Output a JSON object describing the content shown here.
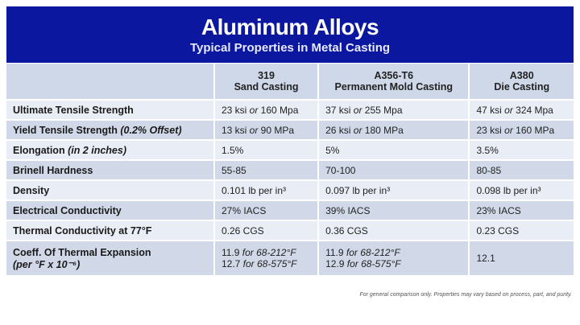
{
  "banner": {
    "title": "Aluminum Alloys",
    "subtitle": "Typical Properties in Metal Casting",
    "color": "#0b179e"
  },
  "columns": [
    {
      "line1": "319",
      "line2": "Sand Casting"
    },
    {
      "line1": "A356-T6",
      "line2": "Permanent Mold Casting"
    },
    {
      "line1": "A380",
      "line2": "Die Casting"
    }
  ],
  "rows": [
    {
      "label": [
        {
          "t": "Ultimate Tensile Strength"
        }
      ],
      "cells": [
        [
          [
            {
              "t": "23 ksi "
            },
            {
              "t": "or",
              "i": true
            },
            {
              "t": " 160 Mpa"
            }
          ]
        ],
        [
          [
            {
              "t": "37 ksi "
            },
            {
              "t": "or",
              "i": true
            },
            {
              "t": " 255 Mpa"
            }
          ]
        ],
        [
          [
            {
              "t": "47 ksi "
            },
            {
              "t": "or",
              "i": true
            },
            {
              "t": " 324 Mpa"
            }
          ]
        ]
      ]
    },
    {
      "label": [
        {
          "t": "Yield Tensile Strength "
        },
        {
          "t": "(0.2% Offset)",
          "i": true
        }
      ],
      "cells": [
        [
          [
            {
              "t": "13 ksi "
            },
            {
              "t": "or",
              "i": true
            },
            {
              "t": " 90 MPa"
            }
          ]
        ],
        [
          [
            {
              "t": "26 ksi "
            },
            {
              "t": "or",
              "i": true
            },
            {
              "t": " 180 MPa"
            }
          ]
        ],
        [
          [
            {
              "t": "23 ksi "
            },
            {
              "t": "or",
              "i": true
            },
            {
              "t": " 160 MPa"
            }
          ]
        ]
      ]
    },
    {
      "label": [
        {
          "t": "Elongation "
        },
        {
          "t": "(in 2 inches)",
          "i": true
        }
      ],
      "cells": [
        [
          [
            {
              "t": "1.5%"
            }
          ]
        ],
        [
          [
            {
              "t": "5%"
            }
          ]
        ],
        [
          [
            {
              "t": "3.5%"
            }
          ]
        ]
      ]
    },
    {
      "label": [
        {
          "t": "Brinell Hardness"
        }
      ],
      "cells": [
        [
          [
            {
              "t": "55-85"
            }
          ]
        ],
        [
          [
            {
              "t": "70-100"
            }
          ]
        ],
        [
          [
            {
              "t": "80-85"
            }
          ]
        ]
      ]
    },
    {
      "label": [
        {
          "t": "Density"
        }
      ],
      "cells": [
        [
          [
            {
              "t": "0.101 lb per in³"
            }
          ]
        ],
        [
          [
            {
              "t": "0.097 lb per in³"
            }
          ]
        ],
        [
          [
            {
              "t": "0.098 lb per in³"
            }
          ]
        ]
      ]
    },
    {
      "label": [
        {
          "t": "Electrical Conductivity"
        }
      ],
      "cells": [
        [
          [
            {
              "t": "27% IACS"
            }
          ]
        ],
        [
          [
            {
              "t": "39% IACS"
            }
          ]
        ],
        [
          [
            {
              "t": "23% IACS"
            }
          ]
        ]
      ]
    },
    {
      "label": [
        {
          "t": "Thermal Conductivity at 77°F"
        }
      ],
      "cells": [
        [
          [
            {
              "t": "0.26 CGS"
            }
          ]
        ],
        [
          [
            {
              "t": "0.36 CGS"
            }
          ]
        ],
        [
          [
            {
              "t": "0.23 CGS"
            }
          ]
        ]
      ]
    },
    {
      "label": [
        {
          "t": "Coeff. Of Thermal Expansion"
        }
      ],
      "label2": [
        {
          "t": "(per °F x 10⁻⁶)",
          "i": true
        }
      ],
      "cells": [
        [
          [
            {
              "t": "11.9 "
            },
            {
              "t": "for 68-212°F",
              "i": true
            }
          ],
          [
            {
              "t": "12.7 "
            },
            {
              "t": "for 68-575°F",
              "i": true
            }
          ]
        ],
        [
          [
            {
              "t": "11.9 "
            },
            {
              "t": "for 68-212°F",
              "i": true
            }
          ],
          [
            {
              "t": "12.9 "
            },
            {
              "t": "for 68-575°F",
              "i": true
            }
          ]
        ],
        [
          [
            {
              "t": "12.1"
            }
          ]
        ]
      ]
    }
  ],
  "footnote": "For general comparison only. Properties may vary based on process, part, and purity."
}
